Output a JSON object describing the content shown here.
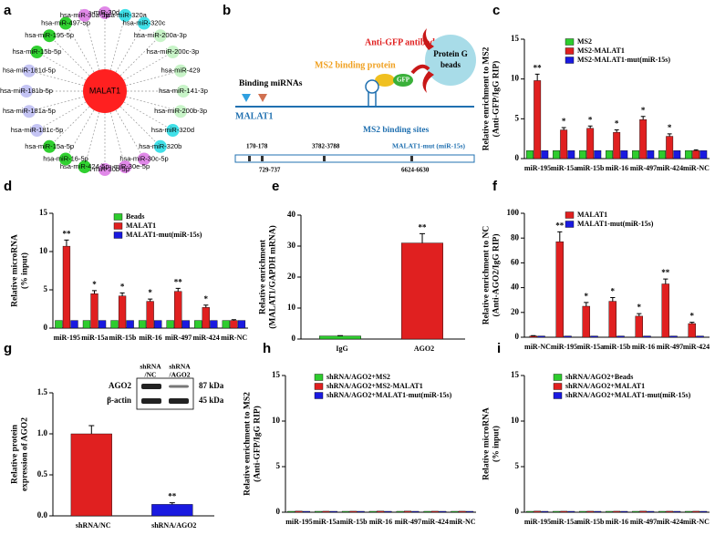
{
  "network": {
    "panel": "a",
    "center": "MALAT1",
    "center_color": "#ff2020",
    "nodes": [
      {
        "label": "hsa-miR-30d-5p",
        "color": "#e088e8"
      },
      {
        "label": "hsa-miR-320a",
        "color": "#40e0e8"
      },
      {
        "label": "hsa-miR-320c",
        "color": "#40e0e8"
      },
      {
        "label": "hsa-miR-200a-3p",
        "color": "#c8f4c8"
      },
      {
        "label": "hsa-miR-200c-3p",
        "color": "#c8f4c8"
      },
      {
        "label": "hsa-miR-429",
        "color": "#c8f4c8"
      },
      {
        "label": "hsa-miR-141-3p",
        "color": "#c8f4c8"
      },
      {
        "label": "hsa-miR-200b-3p",
        "color": "#c8f4c8"
      },
      {
        "label": "hsa-miR-320d",
        "color": "#40e0e8"
      },
      {
        "label": "hsa-miR-320b",
        "color": "#40e0e8"
      },
      {
        "label": "hsa-miR-30c-5p",
        "color": "#e088e8"
      },
      {
        "label": "hsa-miR-30e-5p",
        "color": "#e088e8"
      },
      {
        "label": "hsa-miR-30b-5p",
        "color": "#e088e8"
      },
      {
        "label": "hsa-miR-424-5p",
        "color": "#30d030"
      },
      {
        "label": "hsa-miR-16-5p",
        "color": "#30d030"
      },
      {
        "label": "hsa-miR-15a-5p",
        "color": "#30d030"
      },
      {
        "label": "hsa-miR-181c-5p",
        "color": "#c4c4f4"
      },
      {
        "label": "hsa-miR-181a-5p",
        "color": "#c4c4f4"
      },
      {
        "label": "hsa-miR-181b-5p",
        "color": "#c4c4f4"
      },
      {
        "label": "hsa-miR-181d-5p",
        "color": "#c4c4f4"
      },
      {
        "label": "hsa-miR-15b-5p",
        "color": "#30d030"
      },
      {
        "label": "hsa-miR-195-5p",
        "color": "#30d030"
      },
      {
        "label": "hsa-miR-497-5p",
        "color": "#30d030"
      },
      {
        "label": "hsa-miR-30a-5p",
        "color": "#e088e8"
      }
    ]
  },
  "schematic": {
    "panel": "b",
    "antibody": "Anti-GFP antibody",
    "ms2_protein": "MS2 binding protein",
    "beads": [
      "Protein G",
      "beads"
    ],
    "gfp": "GFP",
    "binding": "Binding miRNAs",
    "transcript": "MALAT1",
    "sites": "MS2 binding sites",
    "mutant": "MALAT1-mut (miR-15s)",
    "positions": [
      "170-178",
      "729-737",
      "3782-3788",
      "6624-6630"
    ]
  },
  "chart_data": [
    {
      "panel": "c",
      "type": "bar",
      "ylabel": [
        "Relative enrichment to MS2",
        "(Anti-GFP/IgG RIP)"
      ],
      "categories": [
        "miR-195",
        "miR-15a",
        "miR-15b",
        "miR-16",
        "miR-497",
        "miR-424",
        "miR-NC"
      ],
      "ylim": [
        0,
        15
      ],
      "yticks": [
        0,
        5,
        10,
        15
      ],
      "series": [
        {
          "name": "MS2",
          "color": "#2ecc2e",
          "values": [
            1,
            1,
            1,
            1,
            1,
            1,
            1
          ]
        },
        {
          "name": "MS2-MALAT1",
          "color": "#e02020",
          "values": [
            9.8,
            3.6,
            3.8,
            3.3,
            4.9,
            2.8,
            1.0
          ],
          "errors": [
            0.8,
            0.3,
            0.3,
            0.3,
            0.4,
            0.3,
            0.1
          ],
          "significance": [
            "**",
            "*",
            "*",
            "*",
            "*",
            "*",
            null
          ]
        },
        {
          "name": "MS2-MALAT1-mut(miR-15s)",
          "color": "#1a1ae0",
          "values": [
            1,
            1,
            1,
            1,
            1,
            1,
            1
          ]
        }
      ]
    },
    {
      "panel": "d",
      "type": "bar",
      "ylabel": [
        "Relative microRNA",
        "(% input)"
      ],
      "categories": [
        "miR-195",
        "miR-15a",
        "miR-15b",
        "miR-16",
        "miR-497",
        "miR-424",
        "miR-NC"
      ],
      "ylim": [
        0,
        15
      ],
      "yticks": [
        0,
        5,
        10,
        15
      ],
      "series": [
        {
          "name": "Beads",
          "color": "#2ecc2e",
          "values": [
            1,
            1,
            1,
            1,
            1,
            1,
            1
          ]
        },
        {
          "name": "MALAT1",
          "color": "#e02020",
          "values": [
            10.7,
            4.5,
            4.2,
            3.5,
            4.8,
            2.7,
            1.0
          ],
          "errors": [
            0.8,
            0.4,
            0.4,
            0.3,
            0.4,
            0.3,
            0.1
          ],
          "significance": [
            "**",
            "*",
            "*",
            "*",
            "**",
            "*",
            null
          ]
        },
        {
          "name": "MALAT1-mut(miR-15s)",
          "color": "#1a1ae0",
          "values": [
            1,
            1,
            1,
            1,
            1,
            1,
            1
          ]
        }
      ]
    },
    {
      "panel": "e",
      "type": "bar",
      "ylabel": [
        "Relative enrichment",
        "(MALAT1/GAPDH mRNA)"
      ],
      "categories": [
        "IgG",
        "AGO2"
      ],
      "values": [
        1,
        31
      ],
      "errors": [
        0.1,
        3
      ],
      "significance": [
        null,
        "**"
      ],
      "colors": [
        "#2ecc2e",
        "#e02020"
      ],
      "ylim": [
        0,
        40
      ],
      "yticks": [
        0,
        10,
        20,
        30,
        40
      ]
    },
    {
      "panel": "f",
      "type": "bar",
      "ylabel": [
        "Relative enrichment to NC",
        "(Anti-AGO2/IgG RIP)"
      ],
      "categories": [
        "miR-NC",
        "miR-195",
        "miR-15a",
        "miR-15b",
        "miR-16",
        "miR-497",
        "miR-424"
      ],
      "ylim": [
        0,
        100
      ],
      "yticks": [
        0,
        20,
        40,
        60,
        80,
        100
      ],
      "series": [
        {
          "name": "MALAT1",
          "color": "#e02020",
          "values": [
            1,
            77,
            25,
            29,
            17,
            43,
            11
          ],
          "errors": [
            0.3,
            8,
            3,
            3,
            2,
            4,
            1
          ],
          "significance": [
            null,
            "**",
            "*",
            "*",
            "*",
            "**",
            "*"
          ]
        },
        {
          "name": "MALAT1-mut(miR-15s)",
          "color": "#1a1ae0",
          "values": [
            1,
            1,
            1,
            1,
            1,
            1,
            1
          ]
        }
      ]
    },
    {
      "panel": "g",
      "type": "bar",
      "ylabel": [
        "Relative protein",
        "expression of AGO2"
      ],
      "categories": [
        "shRNA/NC",
        "shRNA/AGO2"
      ],
      "values": [
        1.0,
        0.14
      ],
      "errors": [
        0.1,
        0.02
      ],
      "significance": [
        null,
        "**"
      ],
      "colors": [
        "#e02020",
        "#1a1ae0"
      ],
      "ylim": [
        0,
        1.5
      ],
      "yticks": [
        {
          "value": 0,
          "label": "0.0"
        },
        {
          "value": 0.5,
          "label": "0.5"
        },
        {
          "value": 1,
          "label": "1.0"
        },
        {
          "value": 1.5,
          "label": "1.5"
        }
      ],
      "blot": {
        "columns": [
          [
            "shRNA",
            "/NC"
          ],
          [
            "shRNA",
            "/AGO2"
          ]
        ],
        "rows": [
          {
            "name": "AGO2",
            "size": "87 kDa"
          },
          {
            "name": "β-actin",
            "size": "45 kDa"
          }
        ]
      }
    },
    {
      "panel": "h",
      "type": "bar",
      "ylabel": [
        "Relative enrichment to MS2",
        "(Anti-GFP/IgG RIP)"
      ],
      "categories": [
        "miR-195",
        "miR-15a",
        "miR-15b",
        "miR-16",
        "miR-497",
        "miR-424",
        "miR-NC"
      ],
      "ylim": [
        0,
        15
      ],
      "yticks": [
        0,
        5,
        10,
        15
      ],
      "series": [
        {
          "name": "shRNA/AGO2+MS2",
          "color": "#2ecc2e",
          "values": [
            0.1,
            0.1,
            0.1,
            0.1,
            0.1,
            0.1,
            0.1
          ]
        },
        {
          "name": "shRNA/AGO2+MS2-MALAT1",
          "color": "#e02020",
          "values": [
            0.12,
            0.11,
            0.11,
            0.12,
            0.12,
            0.11,
            0.11
          ]
        },
        {
          "name": "shRNA/AGO2+MALAT1-mut(miR-15s)",
          "color": "#1a1ae0",
          "values": [
            0.1,
            0.1,
            0.1,
            0.1,
            0.1,
            0.1,
            0.1
          ]
        }
      ]
    },
    {
      "panel": "i",
      "type": "bar",
      "ylabel": [
        "Relative microRNA",
        "(% input)"
      ],
      "categories": [
        "miR-195",
        "miR-15a",
        "miR-15b",
        "miR-16",
        "miR-497",
        "miR-424",
        "miR-NC"
      ],
      "ylim": [
        0,
        15
      ],
      "yticks": [
        0,
        5,
        10,
        15
      ],
      "series": [
        {
          "name": "shRNA/AGO2+Beads",
          "color": "#2ecc2e",
          "values": [
            0.1,
            0.1,
            0.1,
            0.1,
            0.1,
            0.1,
            0.1
          ]
        },
        {
          "name": "shRNA/AGO2+MALAT1",
          "color": "#e02020",
          "values": [
            0.12,
            0.11,
            0.11,
            0.11,
            0.12,
            0.11,
            0.11
          ]
        },
        {
          "name": "shRNA/AGO2+MALAT1-mut(miR-15s)",
          "color": "#1a1ae0",
          "values": [
            0.1,
            0.1,
            0.1,
            0.1,
            0.1,
            0.1,
            0.1
          ]
        }
      ]
    }
  ]
}
